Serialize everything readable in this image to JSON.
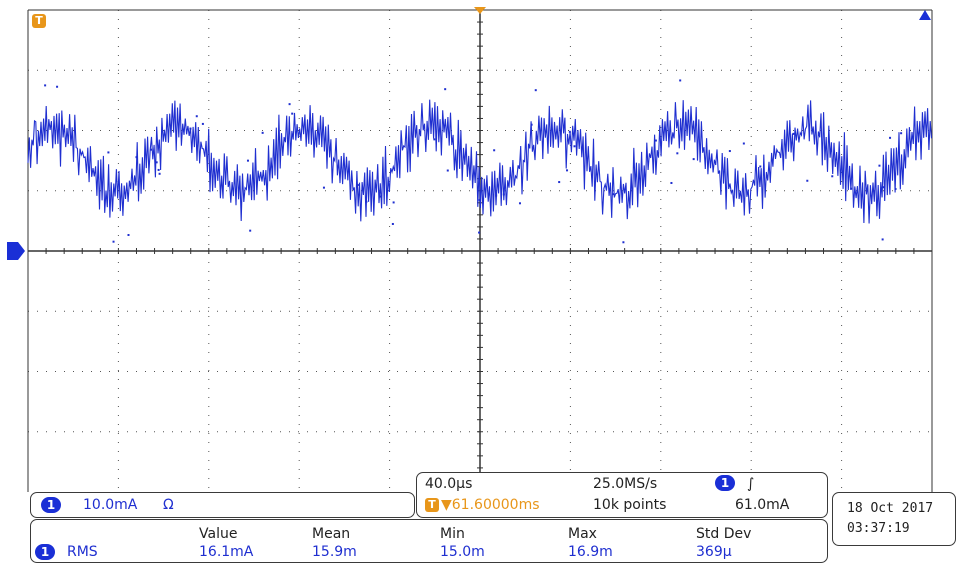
{
  "trace_color": "#1f2fd0",
  "trigger_color": "#e8961a",
  "channel": {
    "number": "1",
    "scale": "10.0mA",
    "coupling_symbol": "Ω"
  },
  "timebase": {
    "time_per_div": "40.0µs",
    "sample_rate": "25.0MS/s",
    "trigger_channel": "1",
    "trigger_slope_symbol": "∫",
    "trigger_icon": "T",
    "trigger_position": "▼61.60000ms",
    "record_length": "10k points",
    "trigger_level": "61.0mA"
  },
  "datetime": {
    "date": "18 Oct  2017",
    "time": "03:37:19"
  },
  "measurements": {
    "headers": [
      "Value",
      "Mean",
      "Min",
      "Max",
      "Std Dev"
    ],
    "row": {
      "channel": "1",
      "name": "RMS",
      "values": [
        "16.1mA",
        "15.9m",
        "15.0m",
        "16.9m",
        "369µ"
      ]
    }
  },
  "markers": {
    "trigger_tag": "T",
    "ground_tag": "1"
  }
}
